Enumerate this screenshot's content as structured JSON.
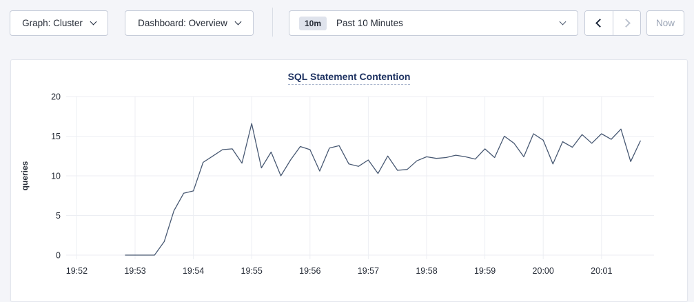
{
  "toolbar": {
    "graph_dropdown_label": "Graph: Cluster",
    "dashboard_dropdown_label": "Dashboard: Overview",
    "time_picker": {
      "badge": "10m",
      "label": "Past 10 Minutes"
    },
    "now_button_label": "Now"
  },
  "colors": {
    "page_background": "#f4f5f9",
    "card_background": "#ffffff",
    "line": "#475872",
    "grid": "#eceef3",
    "tick_text": "#242a35",
    "title_text": "#1f3362"
  },
  "chart_data": {
    "type": "line",
    "title": "SQL Statement Contention",
    "xlabel": "",
    "ylabel": "queries",
    "ylim": [
      0,
      20
    ],
    "yticks": [
      0,
      5,
      10,
      15,
      20
    ],
    "xtick_labels": [
      "19:52",
      "19:53",
      "19:54",
      "19:55",
      "19:56",
      "19:57",
      "19:58",
      "19:59",
      "20:00",
      "20:01"
    ],
    "grid": true,
    "legend": "none",
    "sample_interval_seconds": 10,
    "series": [
      {
        "name": "queries",
        "color": "#475872",
        "x": [
          "19:52:50",
          "19:53:00",
          "19:53:10",
          "19:53:20",
          "19:53:30",
          "19:53:40",
          "19:53:50",
          "19:54:00",
          "19:54:10",
          "19:54:20",
          "19:54:30",
          "19:54:40",
          "19:54:50",
          "19:55:00",
          "19:55:10",
          "19:55:20",
          "19:55:30",
          "19:55:40",
          "19:55:50",
          "19:56:00",
          "19:56:10",
          "19:56:20",
          "19:56:30",
          "19:56:40",
          "19:56:50",
          "19:57:00",
          "19:57:10",
          "19:57:20",
          "19:57:30",
          "19:57:40",
          "19:57:50",
          "19:58:00",
          "19:58:10",
          "19:58:20",
          "19:58:30",
          "19:58:40",
          "19:58:50",
          "19:59:00",
          "19:59:10",
          "19:59:20",
          "19:59:30",
          "19:59:40",
          "19:59:50",
          "20:00:00",
          "20:00:10",
          "20:00:20",
          "20:00:30",
          "20:00:40",
          "20:00:50",
          "20:01:00",
          "20:01:10",
          "20:01:20",
          "20:01:30",
          "20:01:40"
        ],
        "y": [
          0,
          0,
          0,
          0,
          1.7,
          5.6,
          7.8,
          8.1,
          11.7,
          12.5,
          13.3,
          13.4,
          11.6,
          16.6,
          11.0,
          13.0,
          10.0,
          12.0,
          13.7,
          13.3,
          10.6,
          13.5,
          13.8,
          11.5,
          11.2,
          12.0,
          10.3,
          12.5,
          10.7,
          10.8,
          11.9,
          12.4,
          12.2,
          12.3,
          12.6,
          12.4,
          12.1,
          13.4,
          12.3,
          15.0,
          14.1,
          12.4,
          15.3,
          14.5,
          11.5,
          14.3,
          13.6,
          15.2,
          14.1,
          15.3,
          14.6,
          15.9,
          11.8,
          14.4
        ]
      }
    ]
  }
}
